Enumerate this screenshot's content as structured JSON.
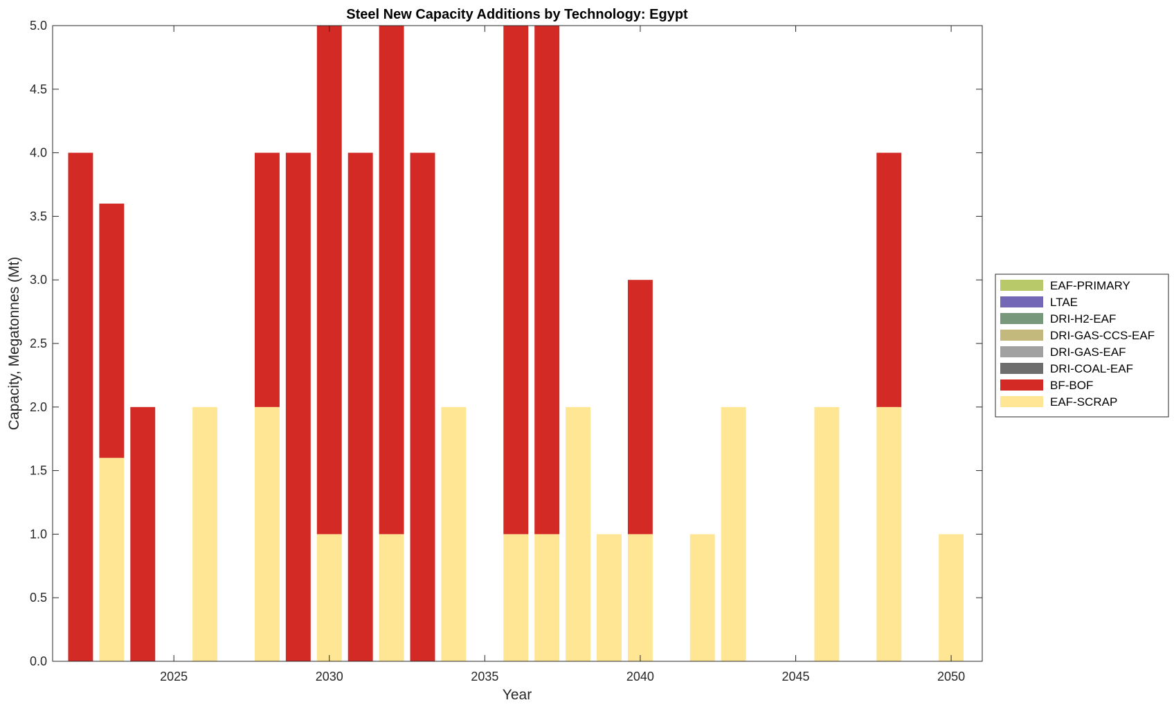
{
  "chart_data": {
    "type": "bar",
    "stacked": true,
    "title": "Steel New Capacity Additions by Technology: Egypt",
    "xlabel": "Year",
    "ylabel": "Capacity, Megatonnes (Mt)",
    "xlim": [
      2021.1,
      2051.0
    ],
    "ylim": [
      0,
      5
    ],
    "xticks": [
      2025,
      2030,
      2035,
      2040,
      2045,
      2050
    ],
    "yticks": [
      "0.0",
      "0.5",
      "1.0",
      "1.5",
      "2.0",
      "2.5",
      "3.0",
      "3.5",
      "4.0",
      "4.5",
      "5.0"
    ],
    "grid": false,
    "legend_position": "right",
    "x": [
      2022,
      2023,
      2024,
      2025,
      2026,
      2027,
      2028,
      2029,
      2030,
      2031,
      2032,
      2033,
      2034,
      2035,
      2036,
      2037,
      2038,
      2039,
      2040,
      2041,
      2042,
      2043,
      2044,
      2045,
      2046,
      2047,
      2048,
      2049,
      2050
    ],
    "series": [
      {
        "name": "EAF-SCRAP",
        "color": "#fee695",
        "values": [
          0,
          1.6,
          0,
          0,
          2,
          0,
          2,
          0,
          1,
          0,
          1,
          0,
          2,
          0,
          1,
          1,
          2,
          1,
          1,
          0,
          1,
          2,
          0,
          0,
          2,
          0,
          2,
          0,
          1
        ]
      },
      {
        "name": "BF-BOF",
        "color": "#d32a25",
        "values": [
          4,
          2,
          2,
          0,
          0,
          0,
          2,
          4,
          4,
          4,
          4,
          4,
          0,
          0,
          4,
          4,
          0,
          0,
          2,
          0,
          0,
          0,
          0,
          0,
          0,
          0,
          2,
          0,
          0
        ]
      },
      {
        "name": "DRI-COAL-EAF",
        "color": "#6d6d6d",
        "values": [
          0,
          0,
          0,
          0,
          0,
          0,
          0,
          0,
          0,
          0,
          0,
          0,
          0,
          0,
          0,
          0,
          0,
          0,
          0,
          0,
          0,
          0,
          0,
          0,
          0,
          0,
          0,
          0,
          0
        ]
      },
      {
        "name": "DRI-GAS-EAF",
        "color": "#a1a1a1",
        "values": [
          0,
          0,
          0,
          0,
          0,
          0,
          0,
          0,
          0,
          0,
          0,
          0,
          0,
          0,
          0,
          0,
          0,
          0,
          0,
          0,
          0,
          0,
          0,
          0,
          0,
          0,
          0,
          0,
          0
        ]
      },
      {
        "name": "DRI-GAS-CCS-EAF",
        "color": "#c4b97c",
        "values": [
          0,
          0,
          0,
          0,
          0,
          0,
          0,
          0,
          0,
          0,
          0,
          0,
          0,
          0,
          0,
          0,
          0,
          0,
          0,
          0,
          0,
          0,
          0,
          0,
          0,
          0,
          0,
          0,
          0
        ]
      },
      {
        "name": "DRI-H2-EAF",
        "color": "#77987a",
        "values": [
          0,
          0,
          0,
          0,
          0,
          0,
          0,
          0,
          0,
          0,
          0,
          0,
          0,
          0,
          0,
          0,
          0,
          0,
          0,
          0,
          0,
          0,
          0,
          0,
          0,
          0,
          0,
          0,
          0
        ]
      },
      {
        "name": "LTAE",
        "color": "#7268b6",
        "values": [
          0,
          0,
          0,
          0,
          0,
          0,
          0,
          0,
          0,
          0,
          0,
          0,
          0,
          0,
          0,
          0,
          0,
          0,
          0,
          0,
          0,
          0,
          0,
          0,
          0,
          0,
          0,
          0,
          0
        ]
      },
      {
        "name": "EAF-PRIMARY",
        "color": "#b8c96a",
        "values": [
          0,
          0,
          0,
          0,
          0,
          0,
          0,
          0,
          0,
          0,
          0,
          0,
          0,
          0,
          0,
          0,
          0,
          0,
          0,
          0,
          0,
          0,
          0,
          0,
          0,
          0,
          0,
          0,
          0
        ]
      }
    ],
    "legend_order": [
      "EAF-PRIMARY",
      "LTAE",
      "DRI-H2-EAF",
      "DRI-GAS-CCS-EAF",
      "DRI-GAS-EAF",
      "DRI-COAL-EAF",
      "BF-BOF",
      "EAF-SCRAP"
    ]
  }
}
